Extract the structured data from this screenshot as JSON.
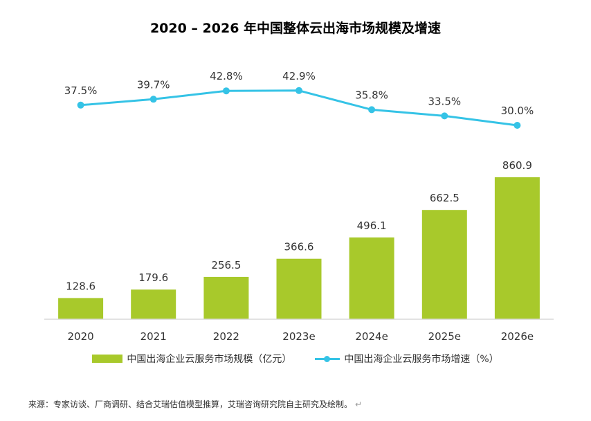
{
  "chart_data": {
    "type": "bar+line",
    "title": "2020 – 2026 年中国整体云出海市场规模及增速",
    "categories": [
      "2020",
      "2021",
      "2022",
      "2023e",
      "2024e",
      "2025e",
      "2026e"
    ],
    "series": [
      {
        "name": "中国出海企业云服务市场规模（亿元）",
        "type": "bar",
        "values": [
          128.6,
          179.6,
          256.5,
          366.6,
          496.1,
          662.5,
          860.9
        ],
        "labels": [
          "128.6",
          "179.6",
          "256.5",
          "366.6",
          "496.1",
          "662.5",
          "860.9"
        ],
        "color": "#a8c92b"
      },
      {
        "name": "中国出海企业云服务市场增速（%）",
        "type": "line",
        "values": [
          37.5,
          39.7,
          42.8,
          42.9,
          35.8,
          33.5,
          30.0
        ],
        "labels": [
          "37.5%",
          "39.7%",
          "42.8%",
          "42.9%",
          "35.8%",
          "33.5%",
          "30.0%"
        ],
        "color": "#35c3e6"
      }
    ],
    "legend_position": "bottom",
    "grid": false,
    "xlabel": "",
    "ylabel": ""
  },
  "source_note": "来源：专家访谈、厂商调研、结合艾瑞估值模型推算，艾瑞咨询研究院自主研究及绘制。",
  "return_mark": "↵"
}
